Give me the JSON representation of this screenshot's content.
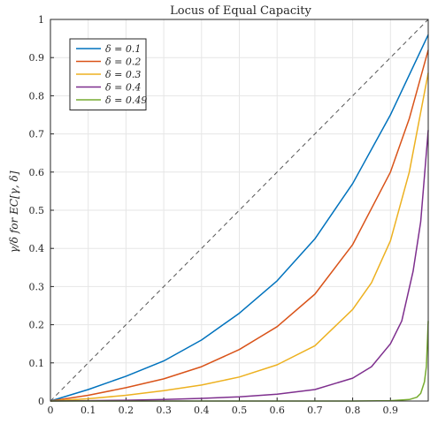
{
  "chart_data": {
    "type": "line",
    "title": "Locus of Equal Capacity",
    "xlabel": "",
    "ylabel": "γ/δ for EC[γ, δ]",
    "xlim": [
      0,
      1
    ],
    "ylim": [
      0,
      1
    ],
    "grid": true,
    "legend_position": "top-left",
    "x_ticks": [
      "0",
      "0.1",
      "0.2",
      "0.3",
      "0.4",
      "0.5",
      "0.6",
      "0.7",
      "0.8",
      "0.9"
    ],
    "y_ticks": [
      "0",
      "0.1",
      "0.2",
      "0.3",
      "0.4",
      "0.5",
      "0.6",
      "0.7",
      "0.8",
      "0.9",
      "1"
    ],
    "reference_line": {
      "style": "dashed",
      "color": "#555555",
      "x": [
        0,
        1
      ],
      "y": [
        0,
        1
      ]
    },
    "series": [
      {
        "name": "δ = 0.1",
        "color": "#0072BD",
        "x": [
          0,
          0.1,
          0.2,
          0.3,
          0.4,
          0.5,
          0.6,
          0.7,
          0.8,
          0.9,
          1.0
        ],
        "y": [
          0,
          0.03,
          0.065,
          0.105,
          0.16,
          0.23,
          0.315,
          0.425,
          0.57,
          0.75,
          0.96
        ]
      },
      {
        "name": "δ = 0.2",
        "color": "#D95319",
        "x": [
          0,
          0.1,
          0.2,
          0.3,
          0.4,
          0.5,
          0.6,
          0.7,
          0.8,
          0.9,
          0.95,
          1.0
        ],
        "y": [
          0,
          0.015,
          0.035,
          0.058,
          0.09,
          0.135,
          0.195,
          0.28,
          0.41,
          0.6,
          0.74,
          0.92
        ]
      },
      {
        "name": "δ = 0.3",
        "color": "#EDB120",
        "x": [
          0,
          0.1,
          0.2,
          0.3,
          0.4,
          0.5,
          0.6,
          0.7,
          0.8,
          0.85,
          0.9,
          0.95,
          1.0
        ],
        "y": [
          0,
          0.006,
          0.015,
          0.027,
          0.042,
          0.063,
          0.095,
          0.145,
          0.24,
          0.31,
          0.42,
          0.6,
          0.86
        ]
      },
      {
        "name": "δ = 0.4",
        "color": "#7E2F8E",
        "x": [
          0,
          0.1,
          0.2,
          0.3,
          0.4,
          0.5,
          0.6,
          0.7,
          0.8,
          0.85,
          0.9,
          0.93,
          0.96,
          0.98,
          1.0
        ],
        "y": [
          0,
          0.001,
          0.002,
          0.004,
          0.007,
          0.011,
          0.018,
          0.03,
          0.06,
          0.09,
          0.15,
          0.21,
          0.34,
          0.47,
          0.71
        ]
      },
      {
        "name": "δ = 0.49",
        "color": "#77AC30",
        "x": [
          0,
          0.5,
          0.8,
          0.9,
          0.95,
          0.97,
          0.98,
          0.99,
          0.995,
          1.0
        ],
        "y": [
          0,
          0,
          0,
          0.001,
          0.004,
          0.01,
          0.02,
          0.05,
          0.09,
          0.21
        ]
      }
    ]
  }
}
